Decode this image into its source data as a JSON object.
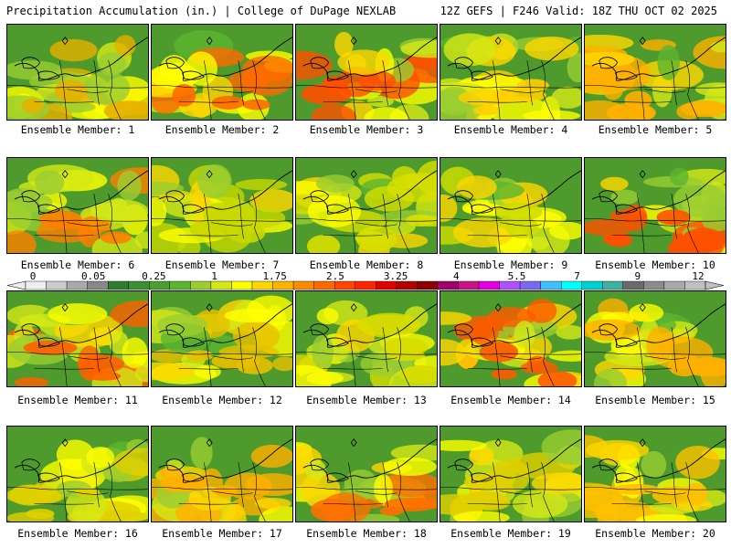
{
  "header": {
    "left": "Precipitation Accumulation (in.) | College of DuPage NEXLAB",
    "right": "12Z GEFS | F246 Valid: 18Z THU OCT 02 2025"
  },
  "colorbar": {
    "tick_labels": [
      "0",
      "0.05",
      "0.25",
      "1",
      "1.75",
      "2.5",
      "3.25",
      "4",
      "5.5",
      "7",
      "9",
      "12"
    ],
    "colors": [
      "#eeeeee",
      "#cccccc",
      "#aaaaaa",
      "#888888",
      "#2e7d32",
      "#3c8f32",
      "#4a9f2e",
      "#5cb531",
      "#9acd32",
      "#d4e817",
      "#ffff00",
      "#ffd700",
      "#ffb300",
      "#ff8c00",
      "#ff6a00",
      "#ff4500",
      "#ff2400",
      "#e00000",
      "#b30000",
      "#8b0000",
      "#a0006e",
      "#c71585",
      "#e000e0",
      "#b050ff",
      "#7b68ee",
      "#40c0ff",
      "#00ffff",
      "#00d0d0",
      "#40b0a0",
      "#6a6a6a",
      "#8c8c8c",
      "#aaaaaa",
      "#c0c0c0"
    ]
  },
  "panels": [
    {
      "label": "Ensemble Member: 1",
      "tint": "#e6b000"
    },
    {
      "label": "Ensemble Member: 2",
      "tint": "#ff6a00"
    },
    {
      "label": "Ensemble Member: 3",
      "tint": "#ff5000"
    },
    {
      "label": "Ensemble Member: 4",
      "tint": "#ffd000"
    },
    {
      "label": "Ensemble Member: 5",
      "tint": "#ffb000"
    },
    {
      "label": "Ensemble Member: 6",
      "tint": "#ff8000"
    },
    {
      "label": "Ensemble Member: 7",
      "tint": "#c8d800"
    },
    {
      "label": "Ensemble Member: 8",
      "tint": "#d8e000"
    },
    {
      "label": "Ensemble Member: 9",
      "tint": "#d0dc00"
    },
    {
      "label": "Ensemble Member: 10",
      "tint": "#ff5000"
    },
    {
      "label": "Ensemble Member: 11",
      "tint": "#ff6000"
    },
    {
      "label": "Ensemble Member: 12",
      "tint": "#e8c000"
    },
    {
      "label": "Ensemble Member: 13",
      "tint": "#d8dc00"
    },
    {
      "label": "Ensemble Member: 14",
      "tint": "#ff5a00"
    },
    {
      "label": "Ensemble Member: 15",
      "tint": "#ffb000"
    },
    {
      "label": "Ensemble Member: 16",
      "tint": "#e0d000"
    },
    {
      "label": "Ensemble Member: 17",
      "tint": "#ffb000"
    },
    {
      "label": "Ensemble Member: 18",
      "tint": "#ff7000"
    },
    {
      "label": "Ensemble Member: 19",
      "tint": "#e0d000"
    },
    {
      "label": "Ensemble Member: 20",
      "tint": "#ffc000"
    }
  ]
}
